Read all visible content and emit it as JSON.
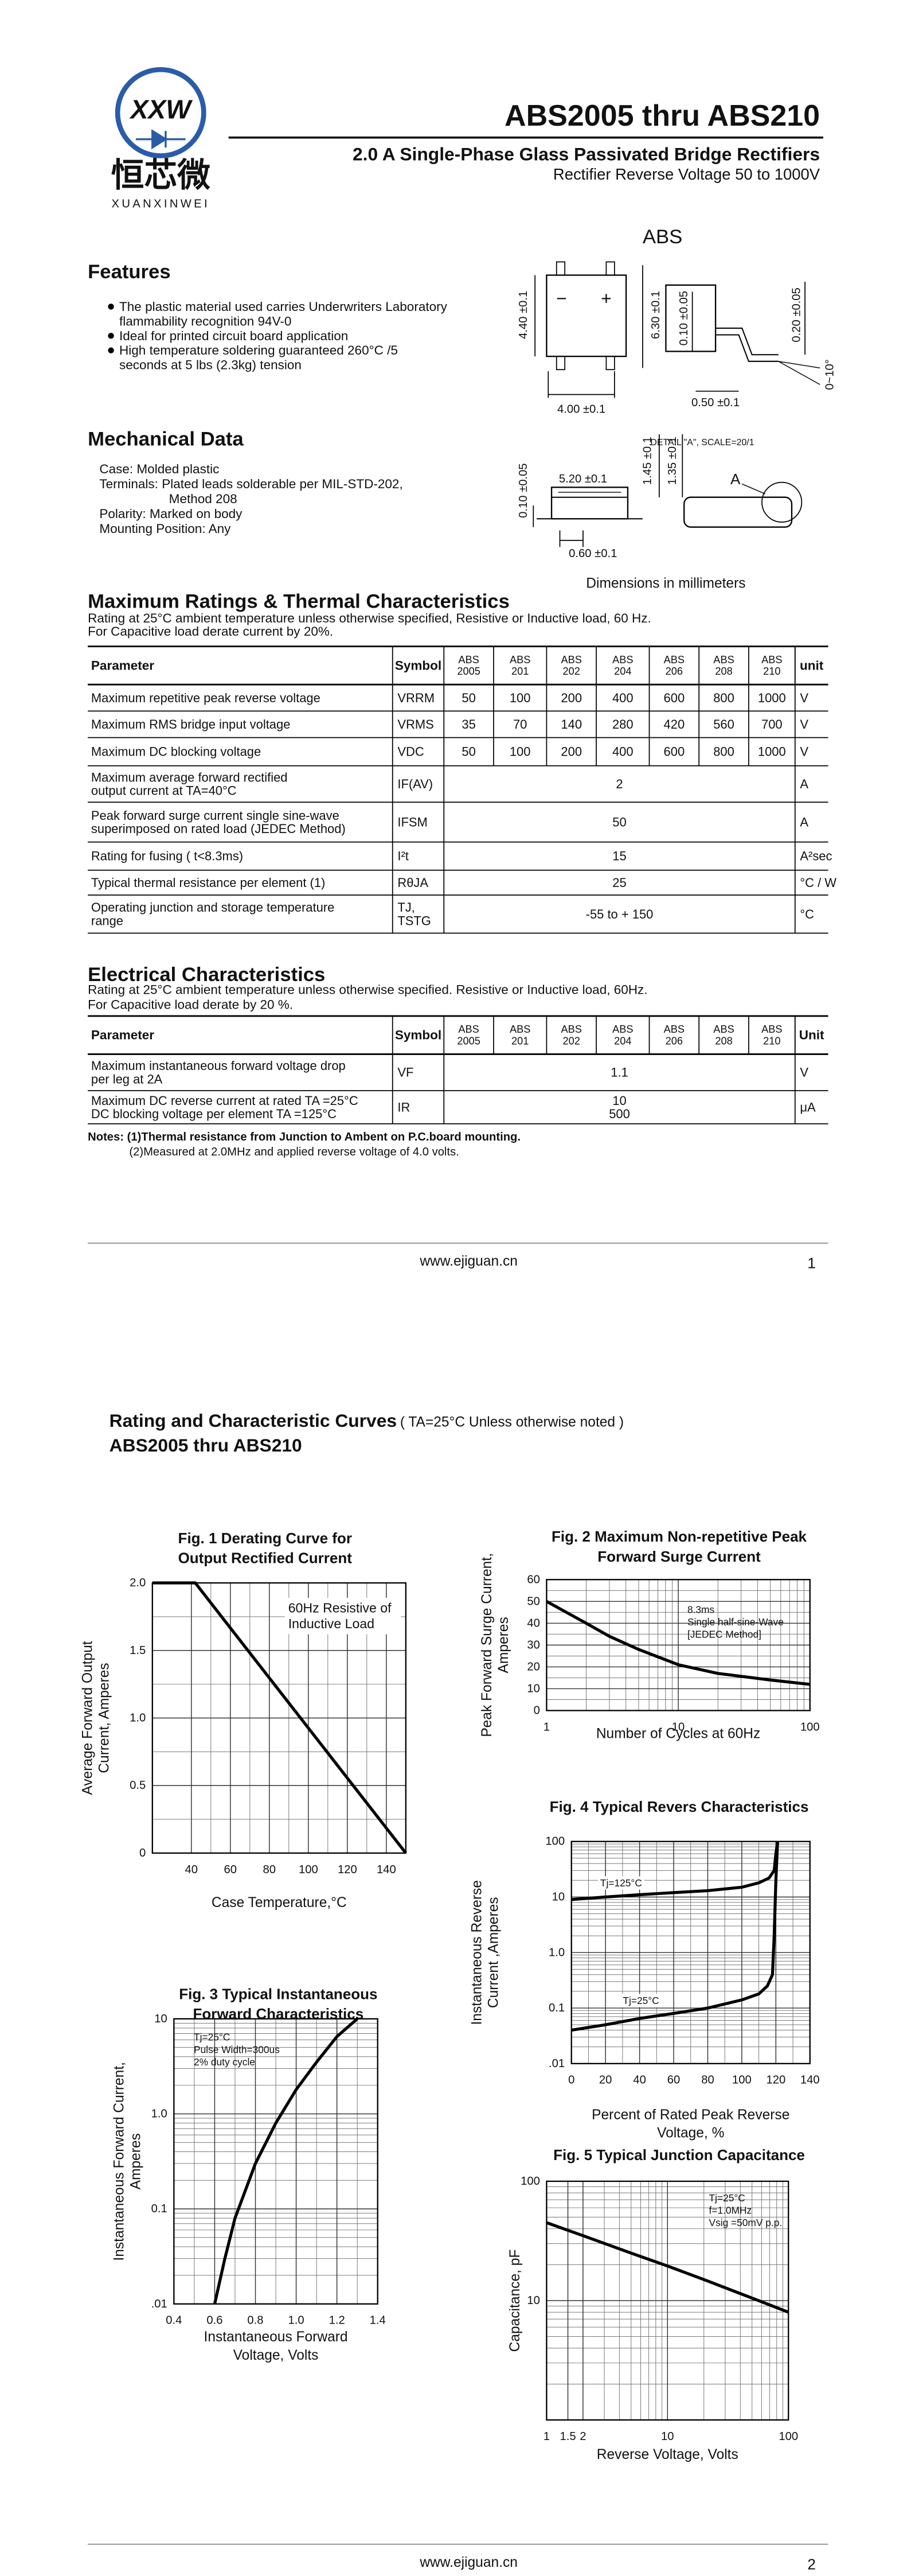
{
  "header": {
    "logo_mark": "XXW",
    "logo_cn": "恒芯微",
    "logo_en": "XUANXINWEI",
    "title": "ABS2005 thru ABS210",
    "subtitle": "2.0 A Single-Phase Glass Passivated Bridge Rectifiers",
    "subtitle2": "Rectifier Reverse Voltage 50 to 1000V"
  },
  "package": {
    "name": "ABS",
    "pin_signs": [
      "−",
      "+"
    ],
    "dims": [
      "4.40 ±0.1",
      "6.30 ±0.1",
      "0.10 ±0.05",
      "0.20 ±0.05",
      "4.00 ±0.1",
      "0.50 ±0.1",
      "0~10°",
      "5.20 ±0.1",
      "1.45 ±0.1",
      "1.35 ±0.1",
      "0.10 ±0.05",
      "0.60 ±0.1"
    ],
    "detail": "DETAIL \"A\", SCALE=20/1",
    "detail_ref": "A",
    "caption": "Dimensions in millimeters"
  },
  "features": {
    "heading": "Features",
    "items": [
      [
        "The plastic material used carries Underwriters Laboratory",
        "flammability recognition 94V-0"
      ],
      [
        "Ideal for printed circuit board application"
      ],
      [
        "High temperature soldering guaranteed 260°C /5",
        "seconds at 5 lbs (2.3kg) tension"
      ]
    ]
  },
  "mechanical": {
    "heading": "Mechanical Data",
    "items": [
      [
        "Case: Molded plastic"
      ],
      [
        "Terminals: Plated leads solderable per MIL-STD-202,",
        "Method 208"
      ],
      [
        "Polarity: Marked on body"
      ],
      [
        "Mounting Position: Any"
      ]
    ]
  },
  "max_ratings": {
    "heading": "Maximum Ratings & Thermal Characteristics",
    "notes": [
      "Rating at 25°C ambient temperature unless otherwise specified, Resistive or Inductive load, 60 Hz.",
      "For Capacitive load derate current by 20%."
    ],
    "table": {
      "header": [
        "Parameter",
        "Symbol",
        [
          "ABS",
          "2005"
        ],
        [
          "ABS",
          "201"
        ],
        [
          "ABS",
          "202"
        ],
        [
          "ABS",
          "204"
        ],
        [
          "ABS",
          "206"
        ],
        [
          "ABS",
          "208"
        ],
        [
          "ABS",
          "210"
        ],
        "unit"
      ],
      "rows": [
        {
          "parameter": [
            "Maximum repetitive peak reverse voltage"
          ],
          "symbol": [
            "VRRM"
          ],
          "values": [
            50,
            100,
            200,
            400,
            600,
            800,
            1000
          ],
          "unit": "V"
        },
        {
          "parameter": [
            "Maximum RMS bridge input voltage"
          ],
          "symbol": [
            "VRMS"
          ],
          "values": [
            35,
            70,
            140,
            280,
            420,
            560,
            700
          ],
          "unit": "V"
        },
        {
          "parameter": [
            "Maximum DC blocking voltage"
          ],
          "symbol": [
            "VDC"
          ],
          "values": [
            50,
            100,
            200,
            400,
            600,
            800,
            1000
          ],
          "unit": "V"
        },
        {
          "parameter": [
            "Maximum average forward rectified",
            "output current at TA=40°C"
          ],
          "symbol": [
            "IF(AV)"
          ],
          "value": [
            "2"
          ],
          "unit": "A"
        },
        {
          "parameter": [
            "Peak forward surge current single sine-wave",
            "superimposed on rated load (JEDEC Method)"
          ],
          "symbol": [
            "IFSM"
          ],
          "value": [
            "50"
          ],
          "unit": "A"
        },
        {
          "parameter": [
            "Rating for fusing ( t<8.3ms)"
          ],
          "symbol": [
            "I²t"
          ],
          "value": [
            "15"
          ],
          "unit": "A²sec"
        },
        {
          "parameter": [
            "Typical  thermal resistance per element (1)"
          ],
          "symbol": [
            "RθJA"
          ],
          "value": [
            "25"
          ],
          "unit": "°C / W"
        },
        {
          "parameter": [
            "Operating junction and storage temperature",
            "range"
          ],
          "symbol": [
            "TJ,",
            "TSTG"
          ],
          "value": [
            "-55 to + 150"
          ],
          "unit": "°C"
        }
      ]
    }
  },
  "electrical": {
    "heading": "Electrical Characteristics",
    "notes": [
      "Rating at 25°C ambient temperature unless otherwise specified. Resistive or Inductive load, 60Hz.",
      "For Capacitive load derate by 20 %."
    ],
    "table": {
      "header": [
        "Parameter",
        "Symbol",
        [
          "ABS",
          "2005"
        ],
        [
          "ABS",
          "201"
        ],
        [
          "ABS",
          "202"
        ],
        [
          "ABS",
          "204"
        ],
        [
          "ABS",
          "206"
        ],
        [
          "ABS",
          "208"
        ],
        [
          "ABS",
          "210"
        ],
        "Unit"
      ],
      "rows": [
        {
          "parameter": [
            "Maximum instantaneous forward voltage drop",
            "per leg at 2A"
          ],
          "symbol": [
            "VF"
          ],
          "value": [
            "1.1"
          ],
          "unit": "V"
        },
        {
          "parameter": [
            "Maximum DC reverse current at rated  TA =25°C",
            "DC blocking voltage per element       TA =125°C"
          ],
          "symbol": [
            "IR"
          ],
          "value": [
            "10",
            "500"
          ],
          "unit": "μA"
        }
      ]
    },
    "footnotes": [
      "Notes: (1)Thermal resistance from Junction to Ambent on P.C.board mounting.",
      "(2)Measured at 2.0MHz and applied reverse voltage of 4.0 volts."
    ]
  },
  "footer1": {
    "url": "www.ejiguan.cn",
    "page": "1"
  },
  "curves": {
    "title": "Rating and Characteristic Curves",
    "condition": "( TA=25°C Unless otherwise noted )",
    "subtitle": "ABS2005 thru ABS210",
    "figures": [
      {
        "title": [
          "Fig. 1 Derating Curve for",
          "Output Rectified Current"
        ],
        "x_label": [
          "Case Temperature,°C"
        ],
        "y_label": [
          "Average Forward Output",
          "Current, Amperes"
        ],
        "annotation": [
          "60Hz Resistive of",
          "Inductive Load"
        ],
        "xscale": "linear",
        "yscale": "linear",
        "xlim": [
          20,
          150
        ],
        "ylim": [
          0,
          2
        ],
        "xticks": [
          40,
          60,
          80,
          100,
          120,
          140
        ],
        "yticks": [
          0,
          0.5,
          {
            "value": 1,
            "label": "1.0"
          },
          1.5,
          {
            "value": 2,
            "label": "2.0"
          }
        ],
        "series": [
          {
            "x": [
              20,
              42,
              150
            ],
            "values": [
              2,
              2,
              0
            ],
            "color": "#000000"
          }
        ]
      },
      {
        "title": [
          "Fig. 2 Maximum Non-repetitive Peak",
          "Forward Surge Current"
        ],
        "x_label": [
          "Number of Cycles at 60Hz"
        ],
        "y_label": [
          "Peak Forward Surge Current,",
          "Amperes"
        ],
        "annotation": [
          "8.3ms",
          "Single half-sine-Wave",
          "[JEDEC Method]"
        ],
        "xscale": "log",
        "yscale": "linear",
        "xlim": [
          1,
          100
        ],
        "ylim": [
          0,
          60
        ],
        "xticks": [
          1,
          10,
          100
        ],
        "yticks": [
          0,
          10,
          20,
          30,
          40,
          50,
          60
        ],
        "series": [
          {
            "x": [
              1,
              2,
              3,
              5,
              10,
              20,
              50,
              100
            ],
            "values": [
              50,
              40,
              34,
              28,
              21,
              17,
              14,
              12
            ],
            "color": "#000000"
          }
        ]
      },
      {
        "title": [
          "Fig. 3 Typical Instantaneous",
          "Forward Characteristics"
        ],
        "x_label": [
          "Instantaneous Forward",
          "Voltage, Volts"
        ],
        "y_label": [
          "Instantaneous Forward Current,",
          "Amperes"
        ],
        "annotation": [
          "Tj=25°C",
          "Pulse Width=300us",
          "2% duty cycle"
        ],
        "xscale": "linear",
        "yscale": "log",
        "xlim": [
          0.4,
          1.4
        ],
        "ylim": [
          0.01,
          10
        ],
        "xticks": [
          0.4,
          0.6,
          0.8,
          {
            "value": 1,
            "label": "1.0"
          },
          1.2,
          1.4
        ],
        "yticks": [
          {
            "value": 0.01,
            "label": ".01"
          },
          0.1,
          {
            "value": 1,
            "label": "1.0"
          },
          10
        ],
        "series": [
          {
            "x": [
              0.6,
              0.65,
              0.7,
              0.8,
              0.9,
              1.0,
              1.1,
              1.2,
              1.3
            ],
            "values": [
              0.01,
              0.03,
              0.08,
              0.3,
              0.8,
              1.8,
              3.5,
              6.5,
              10
            ],
            "color": "#000000"
          }
        ]
      },
      {
        "title": [
          "Fig. 4 Typical Revers Characteristics"
        ],
        "x_label": [
          "Percent of Rated Peak Reverse",
          "Voltage, %"
        ],
        "y_label": [
          "Instantaneous Reverse",
          "Current ,Amperes"
        ],
        "xscale": "linear",
        "yscale": "log",
        "xlim": [
          0,
          140
        ],
        "ylim": [
          0.01,
          100
        ],
        "xticks": [
          0,
          20,
          40,
          60,
          80,
          100,
          120,
          140
        ],
        "yticks": [
          {
            "value": 0.01,
            "label": ".01"
          },
          0.1,
          {
            "value": 1,
            "label": "1.0"
          },
          10,
          100
        ],
        "series": [
          {
            "name": "Tj=125°C",
            "x": [
              0,
              20,
              40,
              60,
              80,
              100,
              110,
              116,
              119,
              120,
              121
            ],
            "values": [
              9,
              10,
              11,
              12,
              13,
              15,
              18,
              22,
              30,
              60,
              100
            ],
            "color": "#000000"
          },
          {
            "name": "Tj=25°C",
            "x": [
              0,
              20,
              40,
              60,
              80,
              100,
              110,
              115,
              118,
              119,
              120,
              121
            ],
            "values": [
              0.04,
              0.05,
              0.065,
              0.08,
              0.1,
              0.14,
              0.18,
              0.25,
              0.4,
              2,
              20,
              100
            ],
            "color": "#000000"
          }
        ]
      },
      {
        "title": [
          "Fig. 5 Typical Junction Capacitance"
        ],
        "x_label": [
          "Reverse Voltage, Volts"
        ],
        "y_label": [
          "Capacitance, pF"
        ],
        "annotation": [
          "Tj=25°C",
          "f=1.0MHz",
          "Vsig =50mV p.p."
        ],
        "xscale": "log",
        "yscale": "log",
        "xlim": [
          1,
          100
        ],
        "ylim": [
          1,
          100
        ],
        "xticks": [
          1,
          1.5,
          2,
          10,
          100
        ],
        "yticks": [
          10,
          100
        ],
        "series": [
          {
            "x": [
              1,
              2,
              5,
              10,
              20,
              50,
              100
            ],
            "values": [
              45,
              35,
              25,
              19.5,
              15,
              10.5,
              8
            ],
            "color": "#000000"
          }
        ]
      }
    ]
  },
  "footer2": {
    "url": "www.ejiguan.cn",
    "page": "2"
  }
}
